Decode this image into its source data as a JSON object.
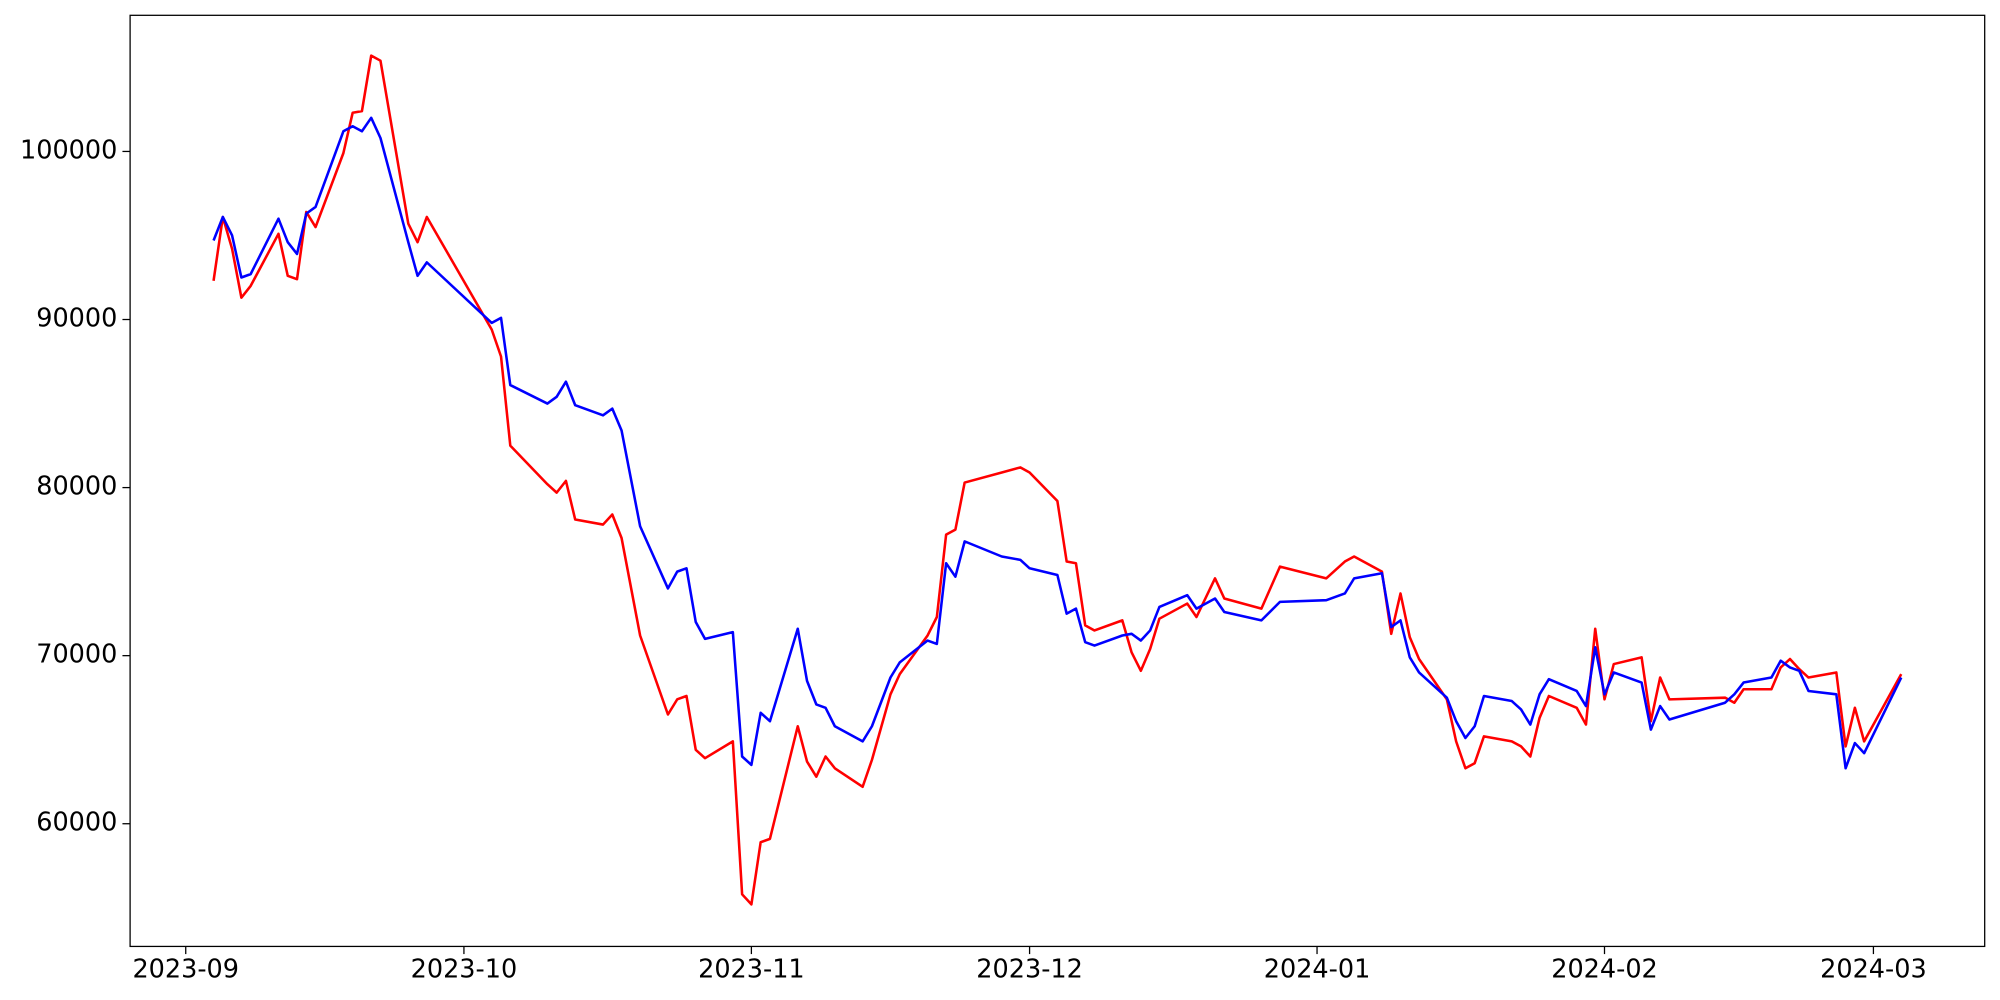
{
  "chart_data": {
    "type": "line",
    "x": [
      "2023-09-04",
      "2023-09-05",
      "2023-09-06",
      "2023-09-07",
      "2023-09-08",
      "2023-09-11",
      "2023-09-12",
      "2023-09-13",
      "2023-09-14",
      "2023-09-15",
      "2023-09-18",
      "2023-09-19",
      "2023-09-20",
      "2023-09-21",
      "2023-09-22",
      "2023-09-25",
      "2023-09-26",
      "2023-09-27",
      "2023-10-04",
      "2023-10-05",
      "2023-10-06",
      "2023-10-10",
      "2023-10-11",
      "2023-10-12",
      "2023-10-13",
      "2023-10-16",
      "2023-10-17",
      "2023-10-18",
      "2023-10-20",
      "2023-10-23",
      "2023-10-24",
      "2023-10-25",
      "2023-10-26",
      "2023-10-27",
      "2023-10-30",
      "2023-10-31",
      "2023-11-01",
      "2023-11-02",
      "2023-11-03",
      "2023-11-06",
      "2023-11-07",
      "2023-11-08",
      "2023-11-09",
      "2023-11-10",
      "2023-11-13",
      "2023-11-14",
      "2023-11-16",
      "2023-11-17",
      "2023-11-20",
      "2023-11-21",
      "2023-11-22",
      "2023-11-23",
      "2023-11-24",
      "2023-11-28",
      "2023-11-30",
      "2023-12-01",
      "2023-12-04",
      "2023-12-05",
      "2023-12-06",
      "2023-12-07",
      "2023-12-08",
      "2023-12-11",
      "2023-12-12",
      "2023-12-13",
      "2023-12-14",
      "2023-12-15",
      "2023-12-18",
      "2023-12-19",
      "2023-12-21",
      "2023-12-22",
      "2023-12-26",
      "2023-12-28",
      "2024-01-02",
      "2024-01-04",
      "2024-01-05",
      "2024-01-08",
      "2024-01-09",
      "2024-01-10",
      "2024-01-11",
      "2024-01-12",
      "2024-01-15",
      "2024-01-16",
      "2024-01-17",
      "2024-01-18",
      "2024-01-19",
      "2024-01-22",
      "2024-01-23",
      "2024-01-24",
      "2024-01-25",
      "2024-01-26",
      "2024-01-29",
      "2024-01-30",
      "2024-01-31",
      "2024-02-01",
      "2024-02-02",
      "2024-02-05",
      "2024-02-06",
      "2024-02-07",
      "2024-02-08",
      "2024-02-14",
      "2024-02-15",
      "2024-02-16",
      "2024-02-19",
      "2024-02-20",
      "2024-02-21",
      "2024-02-22",
      "2024-02-23",
      "2024-02-26",
      "2024-02-27",
      "2024-02-28",
      "2024-02-29",
      "2024-03-04"
    ],
    "series": [
      {
        "color": "#ff0000",
        "values": [
          92300,
          96100,
          94200,
          91300,
          92000,
          95100,
          92600,
          92400,
          96400,
          95500,
          99900,
          102300,
          102400,
          105700,
          105400,
          95700,
          94600,
          96100,
          89400,
          87800,
          82500,
          80200,
          79700,
          80400,
          78100,
          77800,
          78400,
          77000,
          71200,
          66500,
          67400,
          67600,
          64400,
          63900,
          64900,
          55800,
          55200,
          58900,
          59100,
          65800,
          63700,
          62800,
          64000,
          63300,
          62200,
          63800,
          67700,
          68900,
          71200,
          72300,
          77200,
          77500,
          80300,
          80900,
          81200,
          80900,
          79200,
          75600,
          75500,
          71800,
          71500,
          72100,
          70200,
          69100,
          70400,
          72200,
          73100,
          72300,
          74600,
          73400,
          72800,
          75300,
          74600,
          75600,
          75900,
          75000,
          71300,
          73700,
          71100,
          69800,
          67400,
          64900,
          63300,
          63600,
          65200,
          64900,
          64600,
          64000,
          66300,
          67600,
          66900,
          65900,
          71600,
          67400,
          69500,
          69900,
          66100,
          68700,
          67400,
          67500,
          67200,
          68000,
          68000,
          69300,
          69800,
          69200,
          68700,
          69000,
          64600,
          66900,
          64900,
          68900
        ]
      },
      {
        "color": "#0000ff",
        "values": [
          94700,
          96100,
          95000,
          92500,
          92700,
          96000,
          94600,
          93900,
          96300,
          96700,
          101200,
          101500,
          101200,
          102000,
          100800,
          94600,
          92600,
          93400,
          89800,
          90100,
          86100,
          85000,
          85400,
          86300,
          84900,
          84300,
          84700,
          83400,
          77700,
          74000,
          75000,
          75200,
          72000,
          71000,
          71400,
          64000,
          63500,
          66600,
          66100,
          71600,
          68500,
          67100,
          66900,
          65800,
          64900,
          65800,
          68700,
          69600,
          70900,
          70700,
          75500,
          74700,
          76800,
          75900,
          75700,
          75200,
          74800,
          72500,
          72800,
          70800,
          70600,
          71200,
          71300,
          70900,
          71500,
          72900,
          73600,
          72800,
          73400,
          72600,
          72100,
          73200,
          73300,
          73700,
          74600,
          74900,
          71700,
          72100,
          69900,
          69000,
          67500,
          66100,
          65100,
          65800,
          67600,
          67300,
          66800,
          65900,
          67700,
          68600,
          67900,
          67000,
          70500,
          67700,
          69000,
          68400,
          65600,
          67000,
          66200,
          67200,
          67700,
          68400,
          68700,
          69700,
          69300,
          69100,
          67900,
          67700,
          63300,
          64800,
          64200,
          68700
        ]
      }
    ],
    "xlim": [
      "2023-08-26",
      "2024-03-13"
    ],
    "xticks": [
      {
        "value": "2023-09-01",
        "label": "2023-09"
      },
      {
        "value": "2023-10-01",
        "label": "2023-10"
      },
      {
        "value": "2023-11-01",
        "label": "2023-11"
      },
      {
        "value": "2023-12-01",
        "label": "2023-12"
      },
      {
        "value": "2024-01-01",
        "label": "2024-01"
      },
      {
        "value": "2024-02-01",
        "label": "2024-02"
      },
      {
        "value": "2024-03-01",
        "label": "2024-03"
      }
    ],
    "ylim": [
      52700,
      108100
    ],
    "yticks": [
      60000,
      70000,
      80000,
      90000,
      100000
    ],
    "grid": false
  }
}
